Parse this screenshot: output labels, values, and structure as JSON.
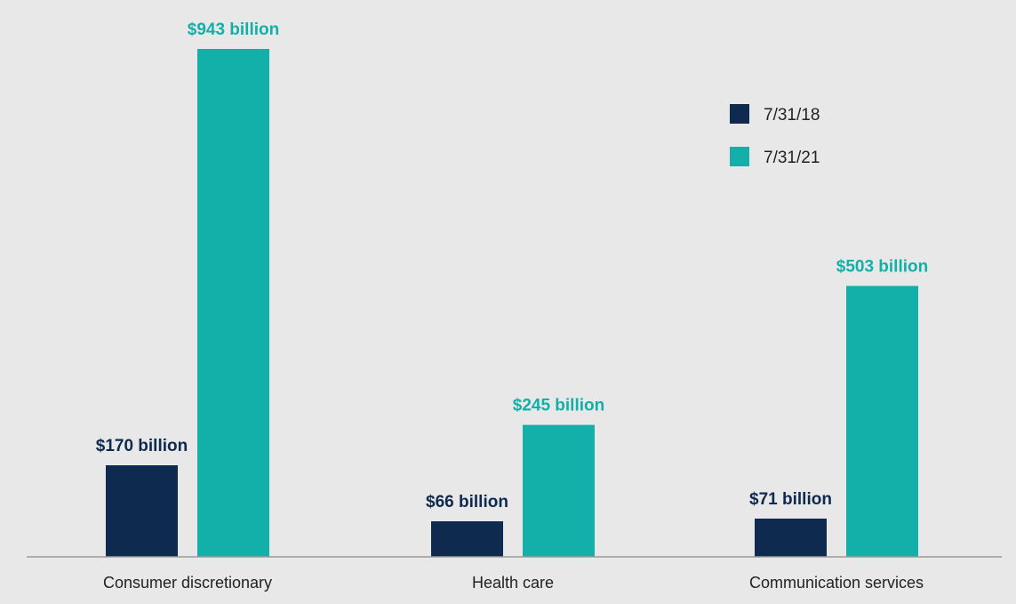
{
  "chart_data": {
    "type": "bar",
    "title": "",
    "xlabel": "",
    "ylabel": "",
    "categories": [
      "Consumer discretionary",
      "Health care",
      "Communication services"
    ],
    "series": [
      {
        "name": "7/31/18",
        "color": "#0e2a4f",
        "values": [
          170,
          66,
          71
        ],
        "labels": [
          "$170 billion",
          "$66 billion",
          "$71 billion"
        ]
      },
      {
        "name": "7/31/21",
        "color": "#12b0a9",
        "values": [
          943,
          245,
          503
        ],
        "labels": [
          "$943 billion",
          "$245 billion",
          "$503 billion"
        ]
      }
    ],
    "unit": "billion USD",
    "ylim": [
      0,
      943
    ],
    "grid": false,
    "legend": "top-right",
    "axis_color": "#9a9a9a",
    "background": "#e8e8e8"
  }
}
